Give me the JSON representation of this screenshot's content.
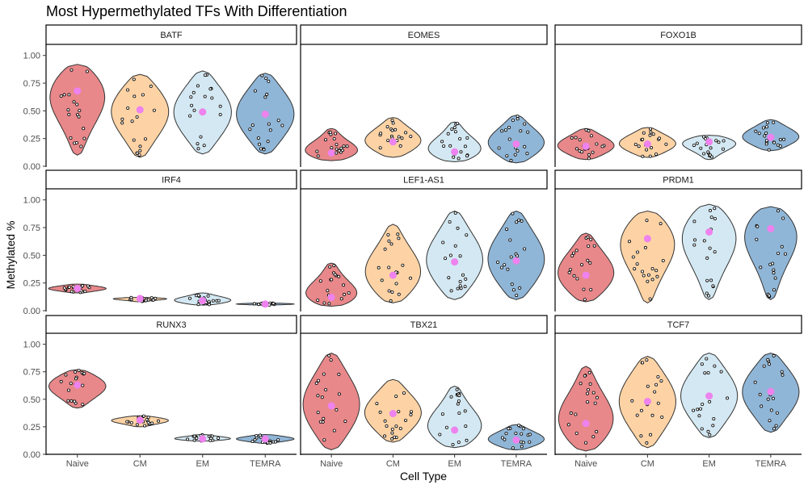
{
  "chart_data": {
    "type": "violin",
    "title": "Most Hypermethylated TFs With Differentiation",
    "xlabel": "Cell Type",
    "ylabel": "Methylated %",
    "categories": [
      "Naive",
      "CM",
      "EM",
      "TEMRA"
    ],
    "ylim": [
      0,
      1.1
    ],
    "yticks": [
      "0.00",
      "0.25",
      "0.50",
      "0.75",
      "1.00"
    ],
    "colors": {
      "Naive": "#e8888a",
      "CM": "#fdd3a5",
      "EM": "#d3e8f2",
      "TEMRA": "#90b6d7",
      "mean_point": "#ee82ee"
    },
    "facets": [
      {
        "name": "BATF",
        "means": [
          0.68,
          0.51,
          0.49,
          0.47
        ],
        "ranges": [
          [
            0.1,
            0.92
          ],
          [
            0.08,
            0.83
          ],
          [
            0.11,
            0.86
          ],
          [
            0.11,
            0.84
          ]
        ]
      },
      {
        "name": "EOMES",
        "means": [
          0.12,
          0.22,
          0.13,
          0.2
        ],
        "ranges": [
          [
            0.05,
            0.34
          ],
          [
            0.08,
            0.44
          ],
          [
            0.04,
            0.4
          ],
          [
            0.03,
            0.46
          ]
        ]
      },
      {
        "name": "FOXO1B",
        "means": [
          0.18,
          0.2,
          0.22,
          0.26
        ],
        "ranges": [
          [
            0.06,
            0.34
          ],
          [
            0.08,
            0.35
          ],
          [
            0.06,
            0.28
          ],
          [
            0.14,
            0.42
          ]
        ]
      },
      {
        "name": "IRF4",
        "means": [
          0.2,
          0.11,
          0.09,
          0.06
        ],
        "ranges": [
          [
            0.16,
            0.24
          ],
          [
            0.08,
            0.12
          ],
          [
            0.05,
            0.16
          ],
          [
            0.05,
            0.07
          ]
        ]
      },
      {
        "name": "LEF1-AS1",
        "means": [
          0.12,
          0.32,
          0.44,
          0.45
        ],
        "ranges": [
          [
            0.04,
            0.43
          ],
          [
            0.07,
            0.78
          ],
          [
            0.1,
            0.9
          ],
          [
            0.1,
            0.9
          ]
        ]
      },
      {
        "name": "PRDM1",
        "means": [
          0.32,
          0.65,
          0.71,
          0.74
        ],
        "ranges": [
          [
            0.08,
            0.7
          ],
          [
            0.07,
            0.9
          ],
          [
            0.1,
            0.96
          ],
          [
            0.1,
            0.94
          ]
        ]
      },
      {
        "name": "RUNX3",
        "means": [
          0.63,
          0.31,
          0.14,
          0.14
        ],
        "ranges": [
          [
            0.42,
            0.77
          ],
          [
            0.25,
            0.35
          ],
          [
            0.12,
            0.18
          ],
          [
            0.1,
            0.18
          ]
        ]
      },
      {
        "name": "TBX21",
        "means": [
          0.44,
          0.37,
          0.22,
          0.13
        ],
        "ranges": [
          [
            0.04,
            0.92
          ],
          [
            0.11,
            0.68
          ],
          [
            0.06,
            0.62
          ],
          [
            0.04,
            0.27
          ]
        ]
      },
      {
        "name": "TCF7",
        "means": [
          0.28,
          0.48,
          0.53,
          0.57
        ],
        "ranges": [
          [
            0.03,
            0.8
          ],
          [
            0.06,
            0.89
          ],
          [
            0.15,
            0.92
          ],
          [
            0.2,
            0.92
          ]
        ]
      }
    ]
  }
}
